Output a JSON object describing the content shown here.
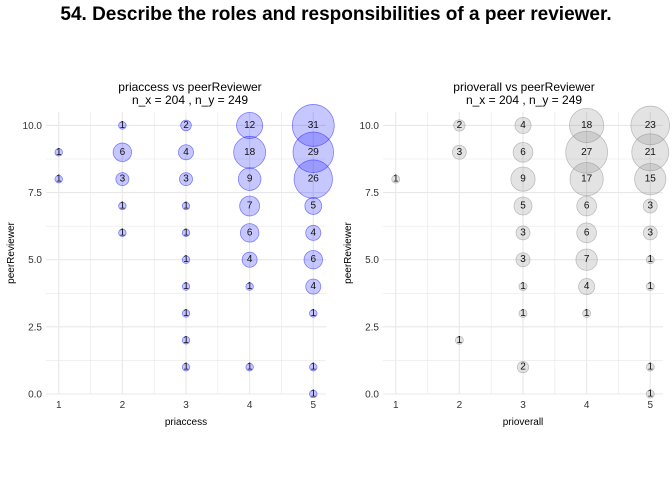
{
  "title": "54. Describe the roles and responsibilities of a peer reviewer.",
  "colors": {
    "left_fill": "#0000ff",
    "right_fill": "#808080",
    "grid": "#e8e8e8"
  },
  "chart_data": [
    {
      "type": "scatter",
      "title_line1": "priaccess vs peerReviewer",
      "title_line2": "n_x = 204 , n_y = 249",
      "xlabel": "priaccess",
      "ylabel": "peerReviewer",
      "xlim": [
        0.8,
        5.2
      ],
      "ylim": [
        0,
        10.5
      ],
      "x_ticks": [
        "1",
        "2",
        "3",
        "4",
        "5"
      ],
      "y_ticks": [
        "0.0",
        "2.5",
        "5.0",
        "7.5",
        "10.0"
      ],
      "points": [
        {
          "x": 1,
          "y": 9,
          "n": 1
        },
        {
          "x": 1,
          "y": 8,
          "n": 1
        },
        {
          "x": 2,
          "y": 10,
          "n": 1
        },
        {
          "x": 2,
          "y": 9,
          "n": 6
        },
        {
          "x": 2,
          "y": 8,
          "n": 3
        },
        {
          "x": 2,
          "y": 7,
          "n": 1
        },
        {
          "x": 2,
          "y": 6,
          "n": 1
        },
        {
          "x": 3,
          "y": 10,
          "n": 2
        },
        {
          "x": 3,
          "y": 9,
          "n": 4
        },
        {
          "x": 3,
          "y": 8,
          "n": 3
        },
        {
          "x": 3,
          "y": 7,
          "n": 1
        },
        {
          "x": 3,
          "y": 6,
          "n": 1
        },
        {
          "x": 3,
          "y": 5,
          "n": 1
        },
        {
          "x": 3,
          "y": 4,
          "n": 1
        },
        {
          "x": 3,
          "y": 3,
          "n": 1
        },
        {
          "x": 3,
          "y": 2,
          "n": 1
        },
        {
          "x": 3,
          "y": 1,
          "n": 1
        },
        {
          "x": 4,
          "y": 10,
          "n": 12
        },
        {
          "x": 4,
          "y": 9,
          "n": 18
        },
        {
          "x": 4,
          "y": 8,
          "n": 9
        },
        {
          "x": 4,
          "y": 7,
          "n": 7
        },
        {
          "x": 4,
          "y": 6,
          "n": 6
        },
        {
          "x": 4,
          "y": 5,
          "n": 4
        },
        {
          "x": 4,
          "y": 4,
          "n": 1
        },
        {
          "x": 4,
          "y": 1,
          "n": 1
        },
        {
          "x": 5,
          "y": 10,
          "n": 31
        },
        {
          "x": 5,
          "y": 9,
          "n": 29
        },
        {
          "x": 5,
          "y": 8,
          "n": 26
        },
        {
          "x": 5,
          "y": 7,
          "n": 5
        },
        {
          "x": 5,
          "y": 6,
          "n": 4
        },
        {
          "x": 5,
          "y": 5,
          "n": 6
        },
        {
          "x": 5,
          "y": 4,
          "n": 4
        },
        {
          "x": 5,
          "y": 3,
          "n": 1
        },
        {
          "x": 5,
          "y": 1,
          "n": 1
        },
        {
          "x": 5,
          "y": 0,
          "n": 1
        }
      ]
    },
    {
      "type": "scatter",
      "title_line1": "prioverall vs peerReviewer",
      "title_line2": "n_x = 204 , n_y = 249",
      "xlabel": "prioverall",
      "ylabel": "peerReviewer",
      "xlim": [
        0.8,
        5.2
      ],
      "ylim": [
        0,
        10.5
      ],
      "x_ticks": [
        "1",
        "2",
        "3",
        "4",
        "5"
      ],
      "y_ticks": [
        "0.0",
        "2.5",
        "5.0",
        "7.5",
        "10.0"
      ],
      "points": [
        {
          "x": 1,
          "y": 8,
          "n": 1
        },
        {
          "x": 2,
          "y": 10,
          "n": 2
        },
        {
          "x": 2,
          "y": 9,
          "n": 3
        },
        {
          "x": 2,
          "y": 2,
          "n": 1
        },
        {
          "x": 3,
          "y": 10,
          "n": 4
        },
        {
          "x": 3,
          "y": 9,
          "n": 6
        },
        {
          "x": 3,
          "y": 8,
          "n": 9
        },
        {
          "x": 3,
          "y": 7,
          "n": 5
        },
        {
          "x": 3,
          "y": 6,
          "n": 3
        },
        {
          "x": 3,
          "y": 5,
          "n": 3
        },
        {
          "x": 3,
          "y": 4,
          "n": 1
        },
        {
          "x": 3,
          "y": 3,
          "n": 1
        },
        {
          "x": 3,
          "y": 1,
          "n": 2
        },
        {
          "x": 4,
          "y": 10,
          "n": 18
        },
        {
          "x": 4,
          "y": 9,
          "n": 27
        },
        {
          "x": 4,
          "y": 8,
          "n": 17
        },
        {
          "x": 4,
          "y": 7,
          "n": 6
        },
        {
          "x": 4,
          "y": 6,
          "n": 6
        },
        {
          "x": 4,
          "y": 5,
          "n": 7
        },
        {
          "x": 4,
          "y": 4,
          "n": 4
        },
        {
          "x": 4,
          "y": 3,
          "n": 1
        },
        {
          "x": 5,
          "y": 10,
          "n": 23
        },
        {
          "x": 5,
          "y": 9,
          "n": 21
        },
        {
          "x": 5,
          "y": 8,
          "n": 15
        },
        {
          "x": 5,
          "y": 7,
          "n": 3
        },
        {
          "x": 5,
          "y": 6,
          "n": 3
        },
        {
          "x": 5,
          "y": 5,
          "n": 1
        },
        {
          "x": 5,
          "y": 4,
          "n": 1
        },
        {
          "x": 5,
          "y": 1,
          "n": 1
        },
        {
          "x": 5,
          "y": 0,
          "n": 1
        }
      ]
    }
  ]
}
